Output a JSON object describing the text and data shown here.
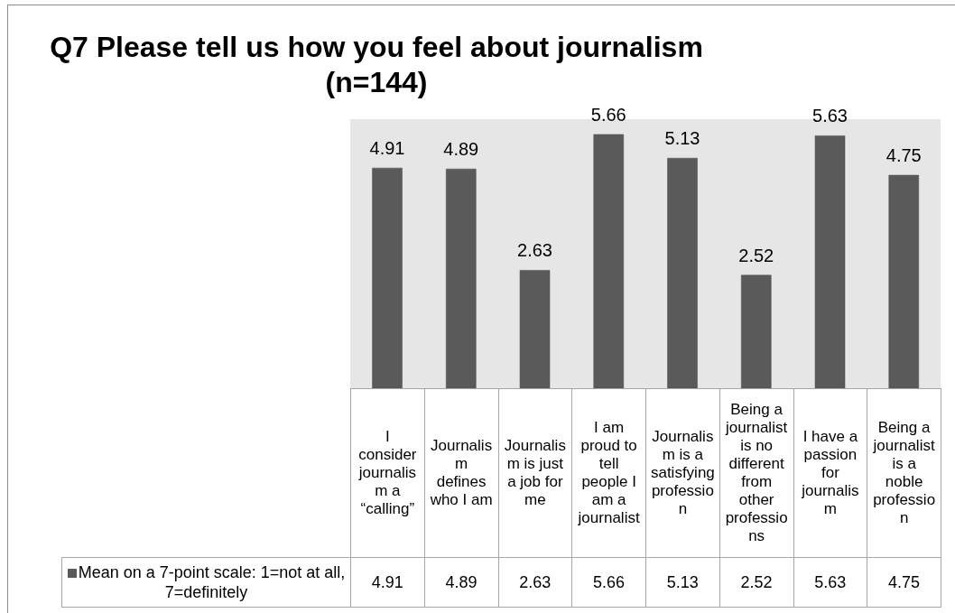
{
  "chart_data": {
    "type": "bar",
    "title": "Q7 Please tell us how you feel about journalism (n=144)",
    "categories": [
      "I consider journalism a “calling”",
      "Journalism defines who I am",
      "Journalism is just a job for me",
      "I am proud to tell people I am a journalist",
      "Journalism is a satisfying profession",
      "Being a journalist is no different from other professions",
      "I have a passion for journalism",
      "Being a journalist is a noble profession"
    ],
    "series": [
      {
        "name": "Mean on a 7-point scale: 1=not at all, 7=definitely",
        "color": "#5a5a5a",
        "values": [
          4.91,
          4.89,
          2.63,
          5.66,
          5.13,
          2.52,
          5.63,
          4.75
        ]
      }
    ],
    "totals": [
      "4.91",
      "4.89",
      "2.63",
      "5.66",
      "5.13",
      "2.52",
      "5.63",
      "4.75"
    ],
    "ylim": [
      0,
      6
    ],
    "data_labels": true,
    "legend": "bottom left",
    "tick_labels": "x"
  }
}
